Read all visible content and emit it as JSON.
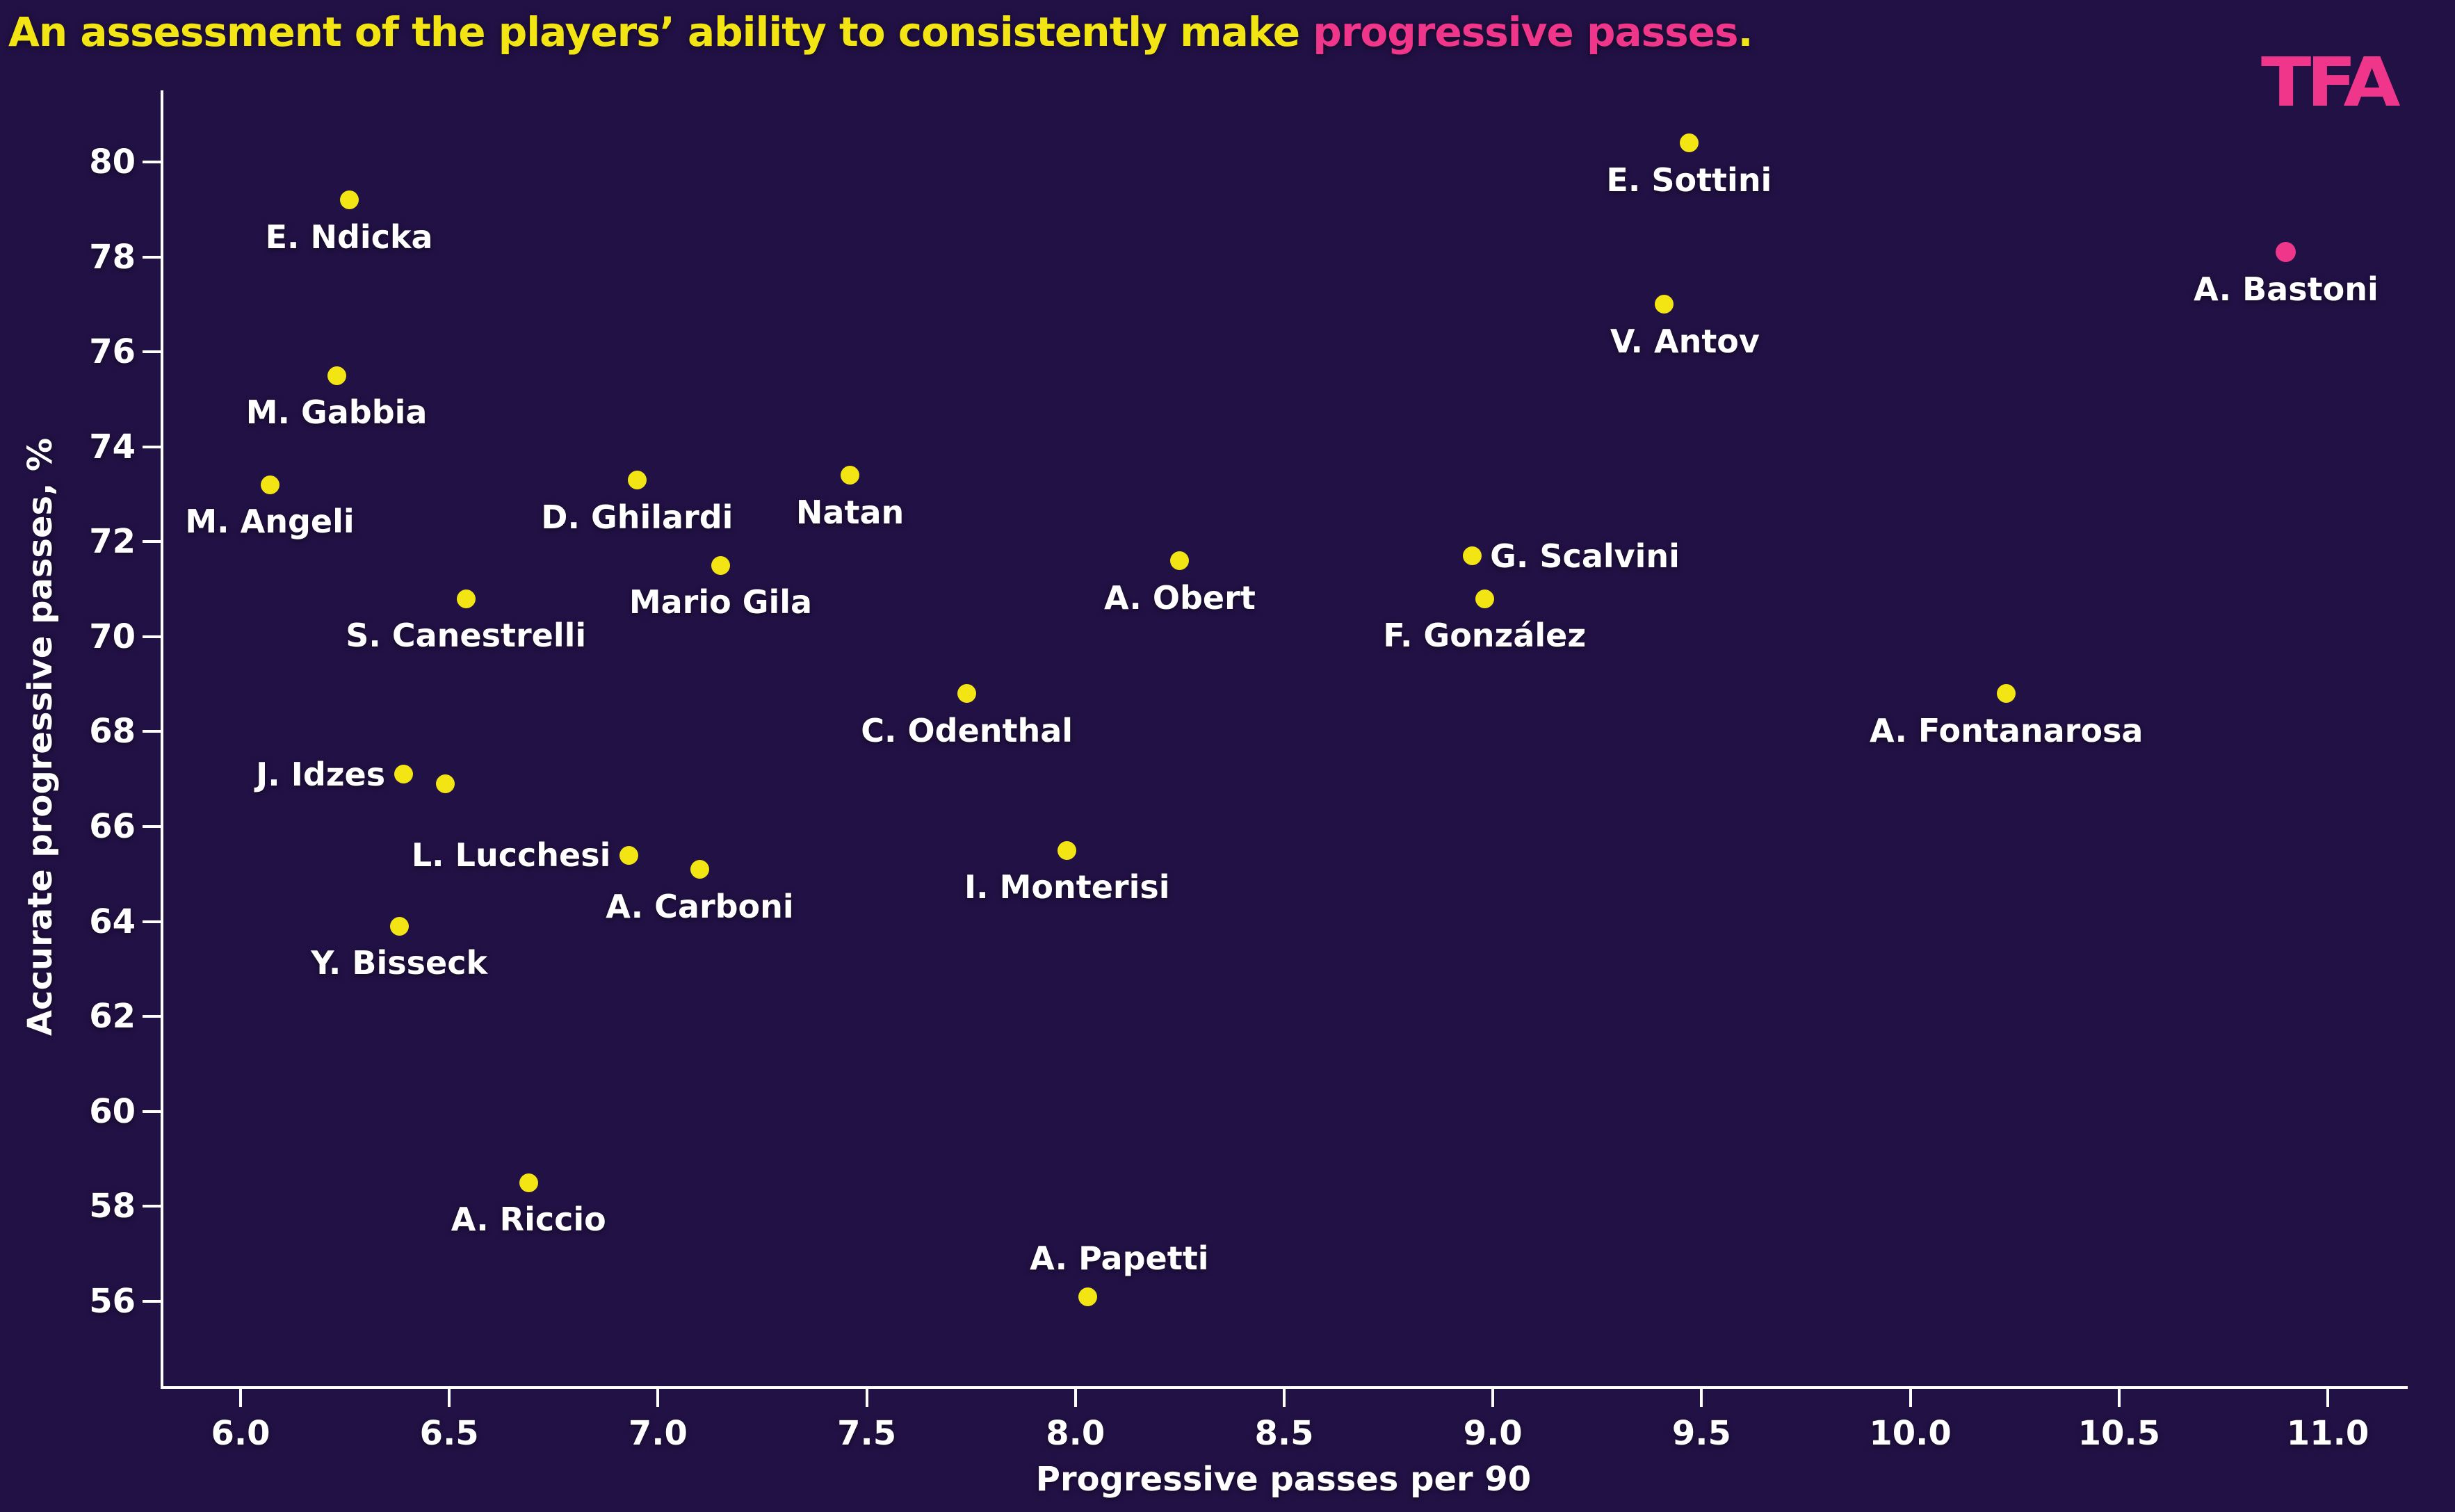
{
  "title": {
    "part1": "An assessment of the players’ ability to consistently make ",
    "highlight": "progressive passes",
    "suffix": "."
  },
  "logo_text": "TFA",
  "colors": {
    "background": "#221145",
    "dot_yellow": "#f2e513",
    "dot_pink": "#f0368b",
    "accent_pink": "#f0368b",
    "title_yellow": "#f2e513",
    "axis_text": "#ffffff"
  },
  "chart_data": {
    "type": "scatter",
    "title": "An assessment of the players’ ability to consistently make progressive passes.",
    "xlabel": "Progressive passes per 90",
    "ylabel": "Accurate progressive passes, %",
    "xlim": [
      5.81,
      11.16
    ],
    "ylim": [
      54.2,
      81.6
    ],
    "grid": false,
    "x_tick_labels": [
      "6.0",
      "6.5",
      "7.0",
      "7.5",
      "8.0",
      "8.5",
      "9.0",
      "9.5",
      "10.0",
      "10.5",
      "11.0"
    ],
    "y_tick_labels": [
      "80",
      "78",
      "76",
      "74",
      "72",
      "70",
      "68",
      "66",
      "64",
      "62",
      "60",
      "58",
      "56"
    ],
    "points": [
      {
        "name": "E. Ndicka",
        "x": 6.26,
        "y": 79.2,
        "color": "yellow",
        "label_pos": "below",
        "dx": 0
      },
      {
        "name": "M. Gabbia",
        "x": 6.23,
        "y": 75.5,
        "color": "yellow",
        "label_pos": "below",
        "dx": 0
      },
      {
        "name": "M. Angeli",
        "x": 6.07,
        "y": 73.2,
        "color": "yellow",
        "label_pos": "below",
        "dx": 0
      },
      {
        "name": "D. Ghilardi",
        "x": 6.95,
        "y": 73.3,
        "color": "yellow",
        "label_pos": "below",
        "dx": 0
      },
      {
        "name": "Natan",
        "x": 7.46,
        "y": 73.4,
        "color": "yellow",
        "label_pos": "below",
        "dx": 0
      },
      {
        "name": "Mario Gila",
        "x": 7.15,
        "y": 71.5,
        "color": "yellow",
        "label_pos": "below",
        "dx": 0
      },
      {
        "name": "S. Canestrelli",
        "x": 6.54,
        "y": 70.8,
        "color": "yellow",
        "label_pos": "below",
        "dx": 0
      },
      {
        "name": "C. Odenthal",
        "x": 7.74,
        "y": 68.8,
        "color": "yellow",
        "label_pos": "below",
        "dx": 0
      },
      {
        "name": "A. Obert",
        "x": 8.25,
        "y": 71.6,
        "color": "yellow",
        "label_pos": "below",
        "dx": 0
      },
      {
        "name": "G. Scalvini",
        "x": 8.95,
        "y": 71.7,
        "color": "yellow",
        "label_pos": "right",
        "dx": 0
      },
      {
        "name": "F. González",
        "x": 8.98,
        "y": 70.8,
        "color": "yellow",
        "label_pos": "below",
        "dx": 0
      },
      {
        "name": "E. Sottini",
        "x": 9.47,
        "y": 80.4,
        "color": "yellow",
        "label_pos": "below",
        "dx": 0
      },
      {
        "name": "V. Antov",
        "x": 9.41,
        "y": 77.0,
        "color": "yellow",
        "label_pos": "below",
        "dx": 30
      },
      {
        "name": "A. Bastoni",
        "x": 10.9,
        "y": 78.1,
        "color": "pink",
        "label_pos": "below",
        "dx": 0
      },
      {
        "name": "A. Fontanarosa",
        "x": 10.23,
        "y": 68.8,
        "color": "yellow",
        "label_pos": "below",
        "dx": 0
      },
      {
        "name": "J. Idzes",
        "x": 6.39,
        "y": 67.1,
        "color": "yellow",
        "label_pos": "left",
        "dx": 0
      },
      {
        "name": "",
        "x": 6.49,
        "y": 66.9,
        "color": "yellow",
        "label_pos": "none",
        "dx": 0
      },
      {
        "name": "L. Lucchesi",
        "x": 6.93,
        "y": 65.4,
        "color": "yellow",
        "label_pos": "left",
        "dx": 0
      },
      {
        "name": "A. Carboni",
        "x": 7.1,
        "y": 65.1,
        "color": "yellow",
        "label_pos": "below",
        "dx": 0
      },
      {
        "name": "I. Monterisi",
        "x": 7.98,
        "y": 65.5,
        "color": "yellow",
        "label_pos": "below",
        "dx": 0
      },
      {
        "name": "Y. Bisseck",
        "x": 6.38,
        "y": 63.9,
        "color": "yellow",
        "label_pos": "below",
        "dx": 0
      },
      {
        "name": "A. Riccio",
        "x": 6.69,
        "y": 58.5,
        "color": "yellow",
        "label_pos": "below",
        "dx": 0
      },
      {
        "name": "A. Papetti",
        "x": 8.03,
        "y": 56.1,
        "color": "yellow",
        "label_pos": "above",
        "dx": 45
      }
    ]
  }
}
